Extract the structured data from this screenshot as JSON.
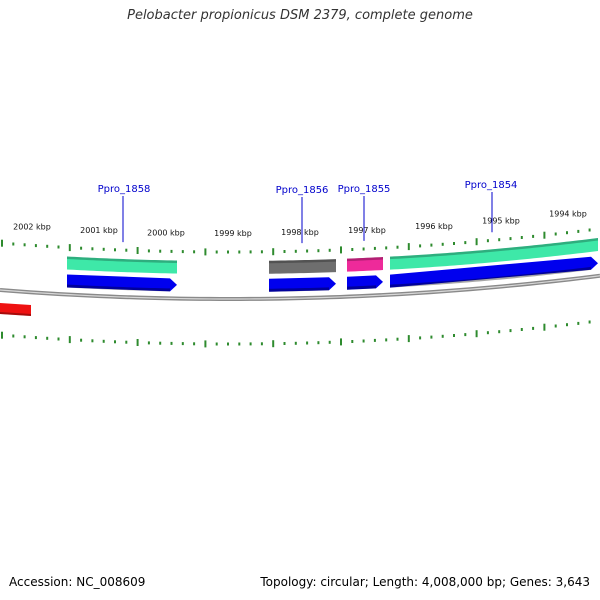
{
  "title": "Pelobacter propionicus DSM 2379, complete genome",
  "footer": {
    "accession": "Accession: NC_008609",
    "topology": "Topology: circular",
    "length": "Length: 4,008,000 bp",
    "genes": "Genes: 3,643"
  },
  "colors": {
    "background": "#ffffff",
    "backbone": "#8a8a8a",
    "tick": "#2e8b2e",
    "forward_cds": "#0000ee",
    "feature_teal": "#3ee8a8",
    "feature_grey": "#6e6e6e",
    "feature_magenta": "#ee2a9a",
    "reverse_red": "#ee1111",
    "gene_label": "#0000cc"
  },
  "ruler": {
    "labels": [
      "2002 kbp",
      "2001 kbp",
      "2000 kbp",
      "1999 kbp",
      "1998 kbp",
      "1997 kbp",
      "1996 kbp",
      "1995 kbp",
      "1994 kbp"
    ]
  },
  "genes": [
    {
      "label": "Ppro_1858",
      "track": "forward",
      "feature_color": "feature_teal"
    },
    {
      "label": "Ppro_1856",
      "track": "forward",
      "feature_color": "feature_grey"
    },
    {
      "label": "Ppro_1855",
      "track": "forward",
      "feature_color": "feature_magenta"
    },
    {
      "label": "Ppro_1854",
      "track": "forward",
      "feature_color": "feature_teal"
    }
  ]
}
